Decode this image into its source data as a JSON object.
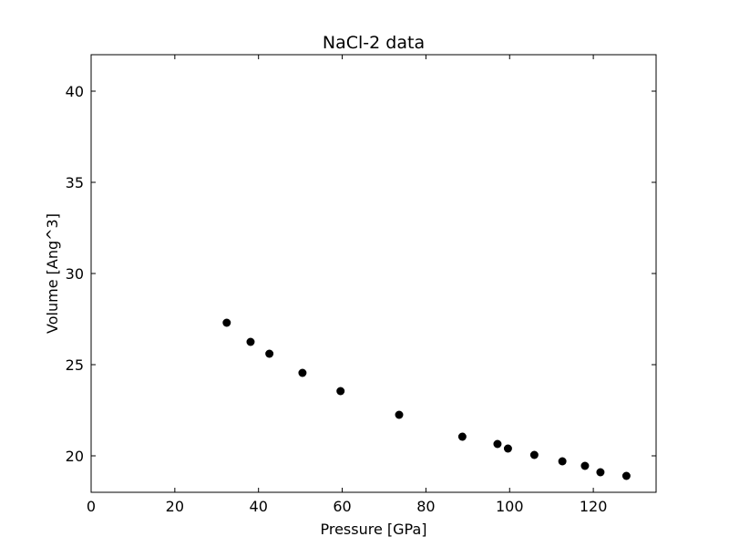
{
  "chart_data": {
    "type": "scatter",
    "title": "NaCl-2 data",
    "xlabel": "Pressure [GPa]",
    "ylabel": "Volume [Ang^3]",
    "xlim": [
      0,
      135
    ],
    "ylim": [
      18,
      42
    ],
    "xticks": [
      0,
      20,
      40,
      60,
      80,
      100,
      120
    ],
    "yticks": [
      20,
      25,
      30,
      35,
      40
    ],
    "grid": false,
    "marker_color": "#000000",
    "series": [
      {
        "x": [
          32.4,
          38.1,
          42.6,
          50.5,
          59.6,
          73.6,
          88.7,
          97.1,
          99.6,
          105.9,
          112.6,
          118.0,
          121.7,
          127.9
        ],
        "y": [
          27.3,
          26.25,
          25.6,
          24.55,
          23.55,
          22.25,
          21.05,
          20.65,
          20.4,
          20.05,
          19.7,
          19.45,
          19.1,
          18.9
        ]
      }
    ]
  }
}
